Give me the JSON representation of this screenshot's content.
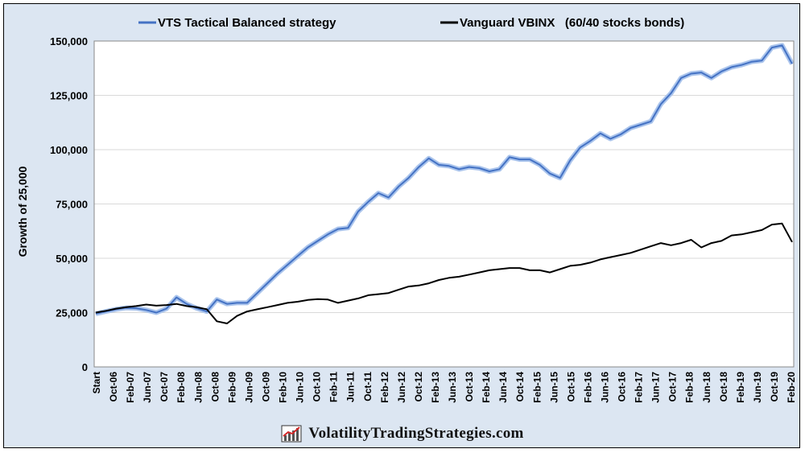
{
  "chart_data": {
    "type": "line",
    "title": "",
    "xlabel": "",
    "ylabel": "Growth of 25,000",
    "ylim": [
      0,
      150000
    ],
    "yticks": [
      0,
      25000,
      50000,
      75000,
      100000,
      125000,
      150000
    ],
    "ytick_labels": [
      "0",
      "25,000",
      "50,000",
      "75,000",
      "100,000",
      "125,000",
      "150,000"
    ],
    "grid": "horizontal",
    "legend_position": "top",
    "xtick_labels": [
      "Start",
      "Oct-06",
      "Feb-07",
      "Jun-07",
      "Oct-07",
      "Feb-08",
      "Jun-08",
      "Oct-08",
      "Feb-09",
      "Jun-09",
      "Oct-09",
      "Feb-10",
      "Jun-10",
      "Oct-10",
      "Feb-11",
      "Jun-11",
      "Oct-11",
      "Feb-12",
      "Jun-12",
      "Oct-12",
      "Feb-13",
      "Jun-13",
      "Oct-13",
      "Feb-14",
      "Jun-14",
      "Oct-14",
      "Feb-15",
      "Jun-15",
      "Oct-15",
      "Feb-16",
      "Jun-16",
      "Oct-16",
      "Feb-17",
      "Jun-17",
      "Oct-17",
      "Feb-18",
      "Jun-18",
      "Oct-18",
      "Feb-19",
      "Jun-19",
      "Oct-19",
      "Feb-20"
    ],
    "series": [
      {
        "name": "VTS Tactical Balanced strategy",
        "color": "#4472c4",
        "values": [
          24500,
          25500,
          26500,
          27200,
          27000,
          26200,
          25000,
          26800,
          32000,
          29000,
          27000,
          25500,
          31000,
          29000,
          29500,
          29500,
          34000,
          38500,
          43000,
          47000,
          51000,
          55000,
          58000,
          61000,
          63500,
          64000,
          71500,
          76000,
          80000,
          78000,
          83000,
          87000,
          92000,
          96000,
          93000,
          92500,
          91000,
          92000,
          91500,
          90000,
          91000,
          96500,
          95500,
          95500,
          93000,
          89000,
          87000,
          95000,
          101000,
          104000,
          107500,
          105000,
          107000,
          110000,
          111500,
          113000,
          121000,
          126000,
          133000,
          135000,
          135500,
          133000,
          136000,
          138000,
          139000,
          140500,
          141000,
          147000,
          148000,
          139500
        ]
      },
      {
        "name": "Vanguard VBINX   (60/40 stocks bonds)",
        "color": "#000000",
        "values": [
          25000,
          25800,
          26800,
          27500,
          28000,
          28700,
          28200,
          28500,
          29000,
          28000,
          27500,
          26500,
          21000,
          20000,
          23500,
          25500,
          26500,
          27500,
          28500,
          29500,
          30000,
          30800,
          31200,
          31000,
          29500,
          30500,
          31500,
          33000,
          33500,
          34000,
          35500,
          37000,
          37500,
          38500,
          40000,
          41000,
          41500,
          42500,
          43500,
          44500,
          45000,
          45500,
          45500,
          44500,
          44500,
          43500,
          45000,
          46500,
          47000,
          48000,
          49500,
          50500,
          51500,
          52500,
          54000,
          55500,
          57000,
          56000,
          57000,
          58500,
          55000,
          57000,
          58000,
          60500,
          61000,
          62000,
          63000,
          65500,
          66000,
          57500
        ]
      }
    ]
  },
  "footer": {
    "text": "VolatilityTradingStrategies.com",
    "logo_icon": "chart-logo-icon"
  }
}
